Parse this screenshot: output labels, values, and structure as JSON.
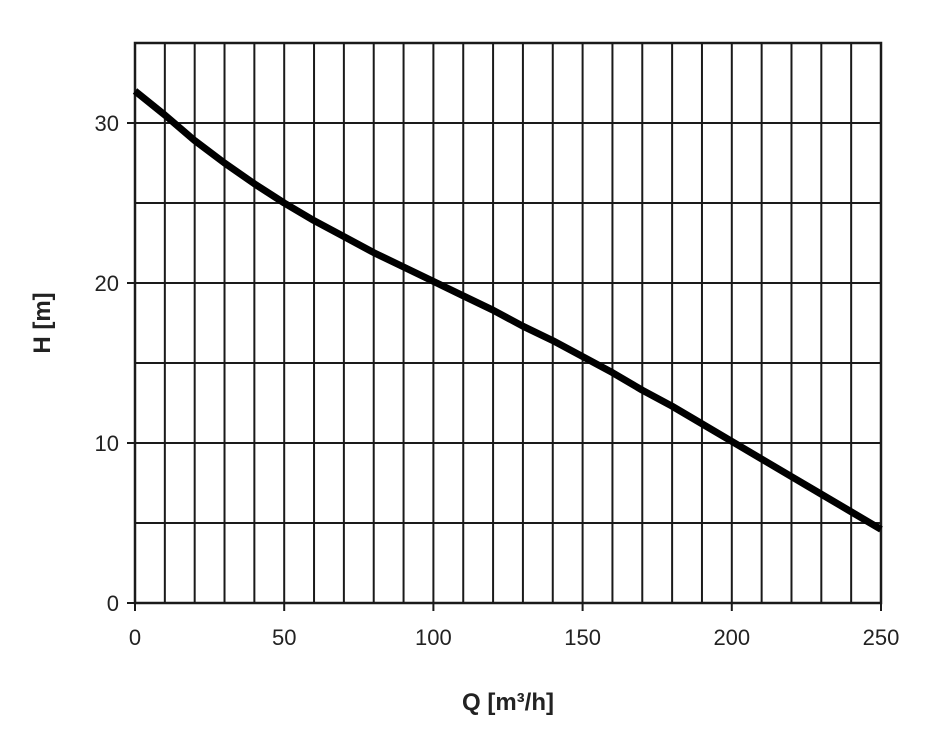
{
  "chart_data": {
    "type": "line",
    "title": "",
    "xlabel": "Q [m³/h]",
    "ylabel": "H [m]",
    "xlim": [
      0,
      250
    ],
    "ylim": [
      0,
      35
    ],
    "x_major_ticks": [
      0,
      50,
      100,
      150,
      200,
      250
    ],
    "y_major_ticks": [
      0,
      10,
      20,
      30
    ],
    "x_grid_step": 10,
    "y_grid_step": 5,
    "grid": true,
    "series": [
      {
        "x": [
          0,
          10,
          20,
          30,
          40,
          50,
          60,
          70,
          80,
          90,
          100,
          110,
          120,
          130,
          140,
          150,
          160,
          170,
          180,
          190,
          200,
          210,
          220,
          230,
          240,
          250
        ],
        "y": [
          32,
          30.5,
          28.9,
          27.5,
          26.2,
          25,
          23.9,
          22.9,
          21.9,
          21,
          20.1,
          19.2,
          18.3,
          17.3,
          16.4,
          15.4,
          14.4,
          13.3,
          12.3,
          11.2,
          10.1,
          9,
          7.9,
          6.8,
          5.7,
          4.6
        ],
        "color": "#000000"
      }
    ]
  }
}
